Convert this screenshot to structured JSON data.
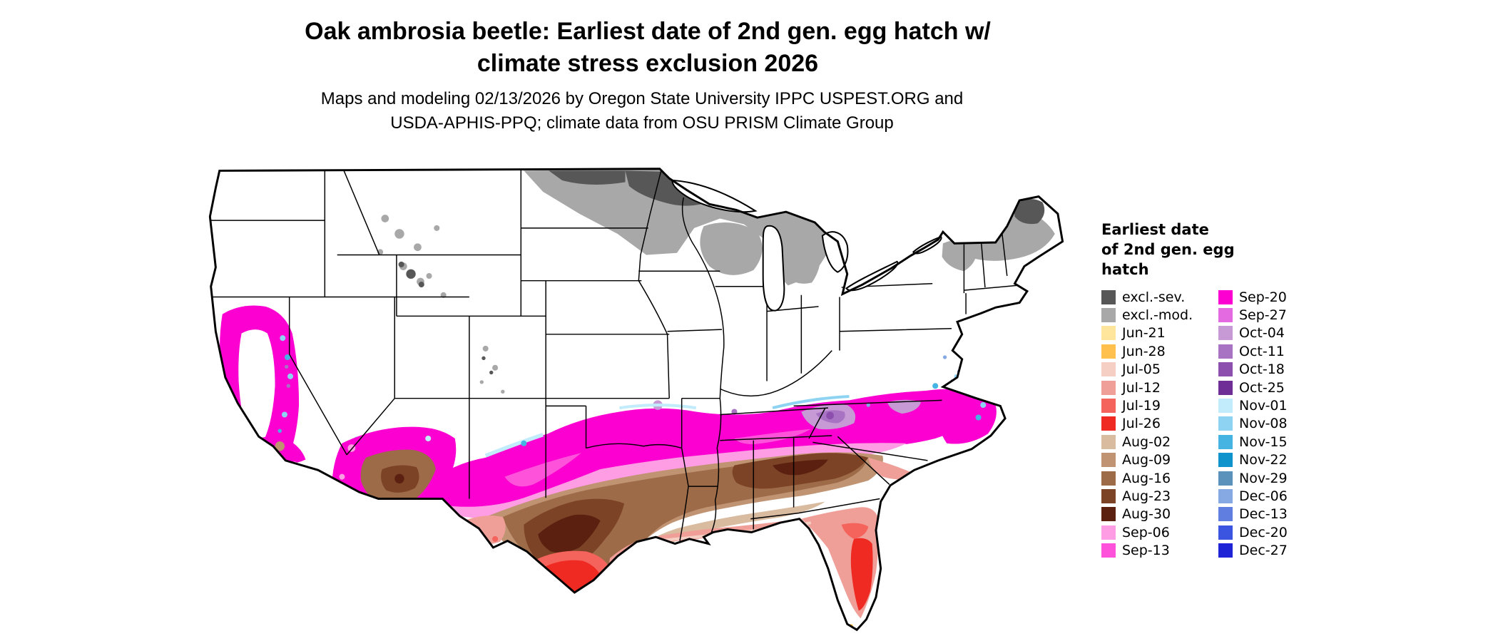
{
  "title": {
    "line1": "Oak ambrosia beetle: Earliest date of 2nd gen. egg hatch w/",
    "line2": "climate stress exclusion 2026"
  },
  "subtitle": {
    "line1": "Maps and modeling 02/13/2026 by Oregon State University IPPC USPEST.ORG and",
    "line2": "USDA-APHIS-PPQ; climate data from OSU PRISM Climate Group"
  },
  "legend": {
    "title_lines": [
      "Earliest date",
      "of 2nd gen. egg",
      "hatch"
    ],
    "columns": [
      {
        "entries": [
          {
            "label": "excl.-sev.",
            "color": "#575757"
          },
          {
            "label": "excl.-mod.",
            "color": "#a8a8a8"
          },
          {
            "label": "Jun-21",
            "color": "#ffe69c"
          },
          {
            "label": "Jun-28",
            "color": "#ffc04d"
          },
          {
            "label": "Jul-05",
            "color": "#f6cfc4"
          },
          {
            "label": "Jul-12",
            "color": "#ef9f98"
          },
          {
            "label": "Jul-19",
            "color": "#f4635c"
          },
          {
            "label": "Jul-26",
            "color": "#ee2a22"
          },
          {
            "label": "Aug-02",
            "color": "#d9bba0"
          },
          {
            "label": "Aug-09",
            "color": "#c09372"
          },
          {
            "label": "Aug-16",
            "color": "#9e6b49"
          },
          {
            "label": "Aug-23",
            "color": "#7c4327"
          },
          {
            "label": "Aug-30",
            "color": "#5c2010"
          },
          {
            "label": "Sep-06",
            "color": "#ff9de4"
          },
          {
            "label": "Sep-13",
            "color": "#ff52da"
          }
        ]
      },
      {
        "entries": [
          {
            "label": "Sep-20",
            "color": "#fb00d0"
          },
          {
            "label": "Sep-27",
            "color": "#e46ae2"
          },
          {
            "label": "Oct-04",
            "color": "#c79ad6"
          },
          {
            "label": "Oct-11",
            "color": "#a873c2"
          },
          {
            "label": "Oct-18",
            "color": "#8c4fae"
          },
          {
            "label": "Oct-25",
            "color": "#6f2d96"
          },
          {
            "label": "Nov-01",
            "color": "#c2ecfb"
          },
          {
            "label": "Nov-08",
            "color": "#8ed4f2"
          },
          {
            "label": "Nov-15",
            "color": "#46b4e3"
          },
          {
            "label": "Nov-22",
            "color": "#0e93cd"
          },
          {
            "label": "Nov-29",
            "color": "#5a92bb"
          },
          {
            "label": "Dec-06",
            "color": "#86a9e4"
          },
          {
            "label": "Dec-13",
            "color": "#5f7ee0"
          },
          {
            "label": "Dec-20",
            "color": "#3c55e0"
          },
          {
            "label": "Dec-27",
            "color": "#1f25d6"
          }
        ]
      }
    ]
  }
}
